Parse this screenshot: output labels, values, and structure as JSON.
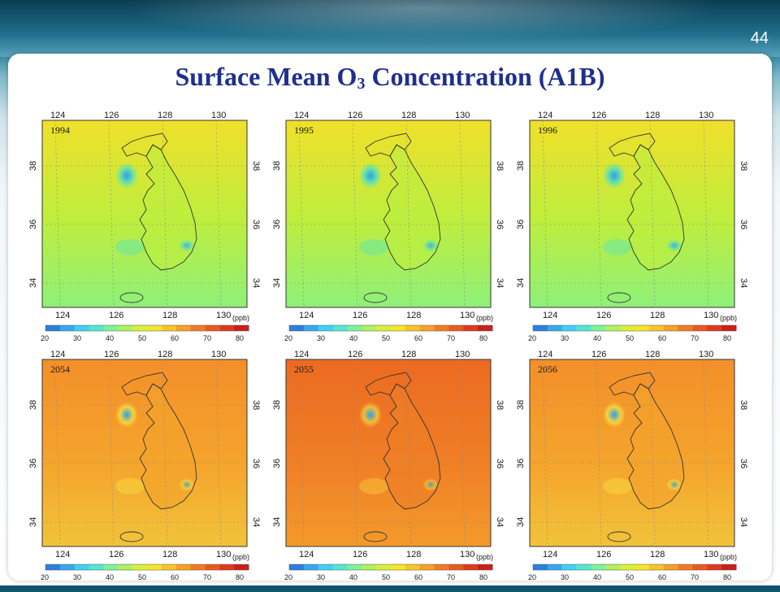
{
  "slide": {
    "page_number": "44",
    "title_main": "Surface Mean O",
    "title_subscript": "3",
    "title_rest": " Concentration  (A1B)"
  },
  "panels": [
    {
      "year": "1994",
      "scheme": "present"
    },
    {
      "year": "1995",
      "scheme": "present"
    },
    {
      "year": "1996",
      "scheme": "present"
    },
    {
      "year": "2054",
      "scheme": "future"
    },
    {
      "year": "2055",
      "scheme": "future-high"
    },
    {
      "year": "2056",
      "scheme": "future"
    }
  ],
  "axes": {
    "lon_ticks": [
      "124",
      "126",
      "128",
      "130"
    ],
    "lat_ticks": [
      "38",
      "36",
      "34"
    ],
    "unit": "(ppb)"
  },
  "colorbar": {
    "ticks": [
      "20",
      "30",
      "40",
      "50",
      "60",
      "70",
      "80"
    ],
    "colors": [
      "#2a7fe0",
      "#36a8f0",
      "#3fd0f5",
      "#53e6d0",
      "#7ef29a",
      "#aef25e",
      "#d9f03a",
      "#f5e62a",
      "#f9c425",
      "#f7a024",
      "#f27a22",
      "#ea5a1f",
      "#e03a1c",
      "#cc1f1a"
    ]
  },
  "map_colors": {
    "present": {
      "base": "#bdee3f",
      "south": "#8ef07a",
      "east": "#f0e02a",
      "city": "#2f9fe8",
      "coast_low": "#6ee6a0"
    },
    "future": {
      "base": "#f4a42c",
      "south": "#f2c33a",
      "east": "#f38f2a",
      "city": "#2f9fe8",
      "coast_low": "#f7d23d"
    },
    "future-high": {
      "base": "#ef7f26",
      "south": "#f39a2b",
      "east": "#ec6a22",
      "city": "#2f9fe8",
      "coast_low": "#f5bd33"
    }
  }
}
